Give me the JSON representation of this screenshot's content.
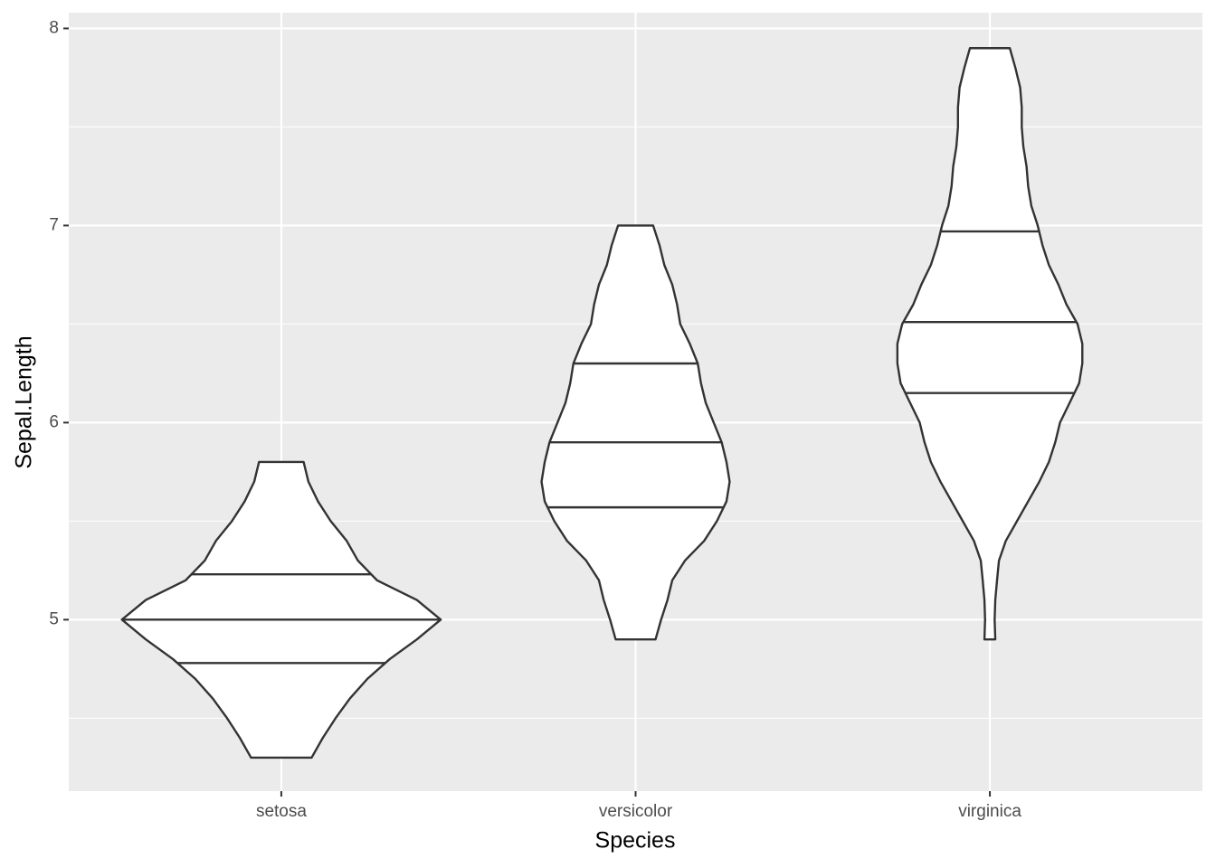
{
  "chart_data": {
    "type": "violin",
    "x_label": "Species",
    "y_label": "Sepal.Length",
    "categories": [
      "setosa",
      "versicolor",
      "virginica"
    ],
    "ylim": [
      4.13,
      8.08
    ],
    "yticks": [
      5,
      6,
      7,
      8
    ],
    "y_minor_grid": [
      4.5,
      5.5,
      6.5,
      7.5
    ],
    "grid": true,
    "fill": "#ffffff",
    "line_color": "#333333",
    "violins": [
      {
        "y": [
          4.3,
          4.4,
          4.5,
          4.6,
          4.7,
          4.8,
          4.9,
          5.0,
          5.1,
          5.2,
          5.3,
          5.4,
          5.5,
          5.6,
          5.7,
          5.8
        ],
        "width": [
          0.19,
          0.26,
          0.34,
          0.43,
          0.54,
          0.68,
          0.85,
          1.0,
          0.85,
          0.6,
          0.48,
          0.41,
          0.31,
          0.23,
          0.17,
          0.14
        ],
        "quantiles": [
          4.78,
          5.0,
          5.23
        ]
      },
      {
        "y": [
          4.9,
          5.0,
          5.1,
          5.2,
          5.3,
          5.4,
          5.5,
          5.6,
          5.7,
          5.8,
          5.9,
          6.0,
          6.1,
          6.2,
          6.3,
          6.4,
          6.5,
          6.6,
          6.7,
          6.8,
          6.9,
          7.0
        ],
        "width": [
          0.125,
          0.16,
          0.2,
          0.23,
          0.31,
          0.43,
          0.51,
          0.57,
          0.59,
          0.57,
          0.54,
          0.49,
          0.44,
          0.41,
          0.39,
          0.34,
          0.28,
          0.26,
          0.23,
          0.18,
          0.15,
          0.11
        ],
        "quantiles": [
          5.57,
          5.9,
          6.3
        ]
      },
      {
        "y": [
          4.9,
          5.0,
          5.1,
          5.2,
          5.3,
          5.4,
          5.5,
          5.6,
          5.7,
          5.8,
          5.9,
          6.0,
          6.1,
          6.2,
          6.3,
          6.4,
          6.5,
          6.6,
          6.7,
          6.8,
          6.9,
          7.0,
          7.1,
          7.2,
          7.3,
          7.4,
          7.5,
          7.6,
          7.7,
          7.8,
          7.9
        ],
        "width": [
          0.034,
          0.03,
          0.034,
          0.045,
          0.057,
          0.1,
          0.17,
          0.24,
          0.31,
          0.37,
          0.41,
          0.44,
          0.5,
          0.56,
          0.58,
          0.58,
          0.55,
          0.48,
          0.43,
          0.37,
          0.33,
          0.3,
          0.26,
          0.24,
          0.23,
          0.21,
          0.2,
          0.2,
          0.19,
          0.16,
          0.125
        ],
        "quantiles": [
          6.15,
          6.51,
          6.97
        ]
      }
    ]
  }
}
